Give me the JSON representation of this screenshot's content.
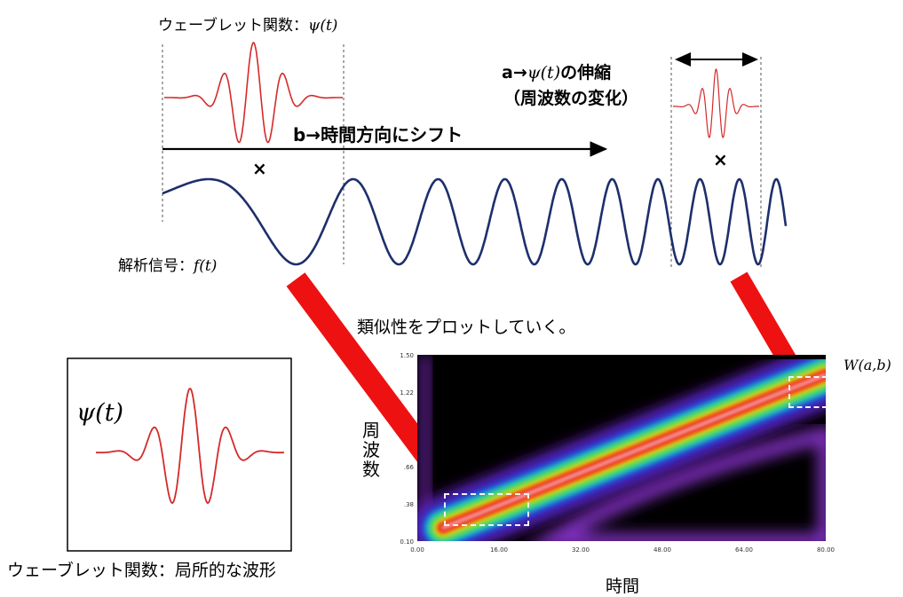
{
  "wavelet_top_label": "ウェーブレット関数：",
  "wavelet_symbol": "ψ(t)",
  "signal_label": "解析信号：",
  "signal_symbol": "f(t)",
  "multiply_symbol": "×",
  "shift_label": "b→時間方向にシフト",
  "stretch_label_prefix": "a→",
  "stretch_label_psi": "ψ(t)",
  "stretch_label_suffix": "の伸縮",
  "stretch_label_line2": "（周波数の変化）",
  "plot_caption": "類似性をプロットしていく。",
  "box_symbol": "ψ(t)",
  "box_caption": "ウェーブレット関数：局所的な波形",
  "colors": {
    "wavelet": "#d42a2a",
    "signal": "#1d2f6b",
    "arrow": "#ee1111"
  },
  "chart_data": {
    "type": "heatmap",
    "title": "W(a,b)",
    "xlabel": "時間",
    "ylabel": "周波数",
    "x_ticks": [
      "0.00",
      "16.00",
      "32.00",
      "48.00",
      "64.00",
      "80.00"
    ],
    "y_ticks": [
      "1.50",
      "1.22",
      ".66",
      ".38",
      "0.10"
    ],
    "xlim": [
      0,
      80
    ],
    "ylim": [
      0.1,
      1.5
    ],
    "ridge": {
      "x": [
        5,
        80
      ],
      "y": [
        0.2,
        1.35
      ]
    },
    "colormap": [
      "black",
      "purple",
      "blue",
      "cyan",
      "green",
      "yellow",
      "orange",
      "red",
      "white"
    ]
  }
}
